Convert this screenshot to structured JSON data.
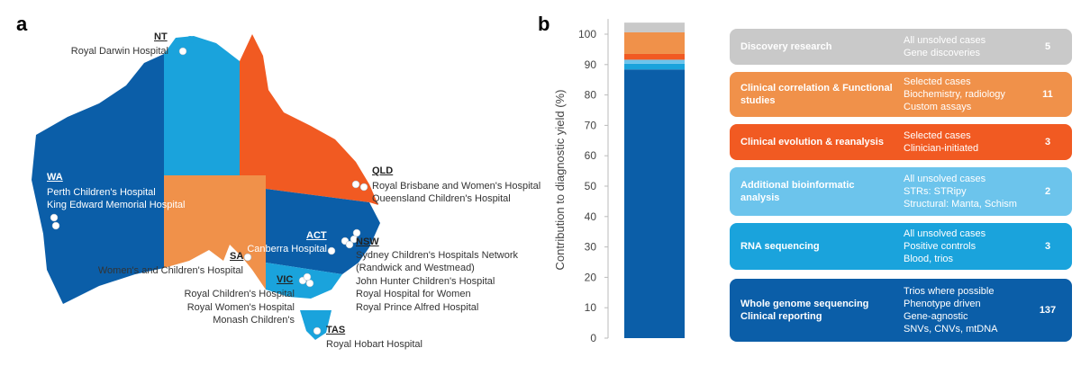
{
  "panels": [
    "a",
    "b"
  ],
  "map": {
    "states": [
      {
        "abbr": "NT",
        "hospitals": [
          "Royal Darwin Hospital"
        ]
      },
      {
        "abbr": "WA",
        "hospitals": [
          "Perth Children's Hospital",
          "King Edward Memorial Hospital"
        ]
      },
      {
        "abbr": "QLD",
        "hospitals": [
          "Royal Brisbane and Women's Hospital",
          "Queensland Children's Hospital"
        ]
      },
      {
        "abbr": "ACT",
        "hospitals": [
          "Canberra Hospital"
        ]
      },
      {
        "abbr": "NSW",
        "hospitals": [
          "Sydney Children's Hospitals Network (Randwick and Westmead)",
          "John Hunter Children's Hospital",
          "Royal Hospital for Women",
          "Royal Prince Alfred Hospital"
        ]
      },
      {
        "abbr": "SA",
        "hospitals": [
          "Women's and Children's Hospital"
        ]
      },
      {
        "abbr": "VIC",
        "hospitals": [
          "Royal Children's Hospital",
          "Royal Women's Hospital",
          "Monash Children's"
        ]
      },
      {
        "abbr": "TAS",
        "hospitals": [
          "Royal Hobart Hospital"
        ]
      }
    ]
  },
  "chart_data": {
    "type": "stacked_bar",
    "y_label": "Contribution to diagnostic yield (%)",
    "ylim": [
      0,
      105
    ],
    "yticks": [
      0,
      10,
      20,
      30,
      40,
      50,
      60,
      70,
      80,
      90,
      100
    ],
    "series": [
      {
        "name": "Whole genome sequencing Clinical reporting",
        "color": "#0b5ea8",
        "values": [
          88.4
        ],
        "details": [
          "Trios where possible",
          "Phenotype driven",
          "Gene-agnostic",
          "SNVs, CNVs, mtDNA"
        ],
        "count": 137
      },
      {
        "name": "RNA sequencing",
        "color": "#1aa3dc",
        "values": [
          1.9
        ],
        "details": [
          "All unsolved cases",
          "Positive controls",
          "Blood, trios"
        ],
        "count": 3
      },
      {
        "name": "Additional bioinformatic analysis",
        "color": "#6cc4ec",
        "values": [
          1.3
        ],
        "details": [
          "All unsolved cases",
          "STRs: STRipy",
          "Structural: Manta, Schism"
        ],
        "count": 2
      },
      {
        "name": "Clinical evolution & reanalysis",
        "color": "#f15a22",
        "values": [
          1.9
        ],
        "details": [
          "Selected cases",
          "Clinician-initiated"
        ],
        "count": 3
      },
      {
        "name": "Clinical correlation & Functional studies",
        "color": "#f0914a",
        "values": [
          7.1
        ],
        "details": [
          "Selected cases",
          "Biochemistry, radiology",
          "Custom assays"
        ],
        "count": 11
      },
      {
        "name": "Discovery research",
        "color": "#c9c9c9",
        "values": [
          3.2
        ],
        "details": [
          "All unsolved cases",
          "Gene discoveries"
        ],
        "count": 5
      }
    ]
  }
}
